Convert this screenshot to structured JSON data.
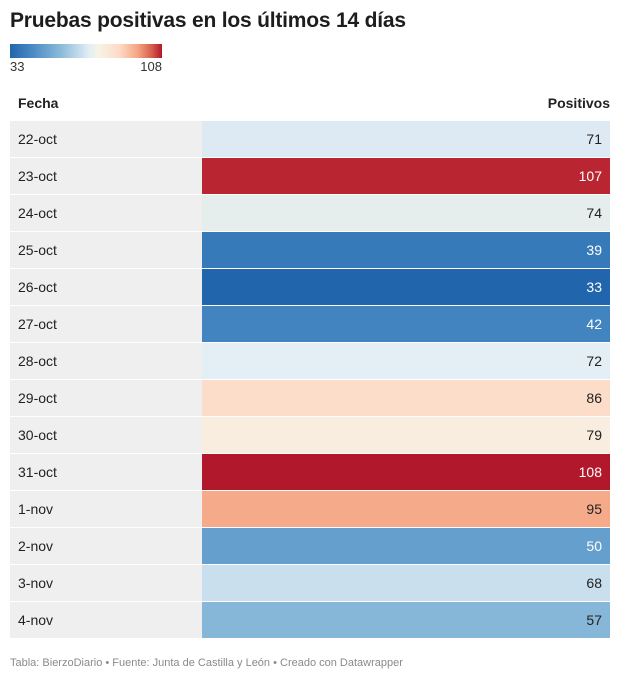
{
  "title": "Pruebas positivas en los últimos 14 días",
  "legend": {
    "min": "33",
    "max": "108"
  },
  "chart_data": {
    "type": "table",
    "columns": [
      "Fecha",
      "Positivos"
    ],
    "rows": [
      {
        "date": "22-oct",
        "value": 71
      },
      {
        "date": "23-oct",
        "value": 107
      },
      {
        "date": "24-oct",
        "value": 74
      },
      {
        "date": "25-oct",
        "value": 39
      },
      {
        "date": "26-oct",
        "value": 33
      },
      {
        "date": "27-oct",
        "value": 42
      },
      {
        "date": "28-oct",
        "value": 72
      },
      {
        "date": "29-oct",
        "value": 86
      },
      {
        "date": "30-oct",
        "value": 79
      },
      {
        "date": "31-oct",
        "value": 108
      },
      {
        "date": "1-nov",
        "value": 95
      },
      {
        "date": "2-nov",
        "value": 50
      },
      {
        "date": "3-nov",
        "value": 68
      },
      {
        "date": "4-nov",
        "value": 57
      }
    ],
    "color_scale": {
      "min": 33,
      "max": 108,
      "low_color": "#2166ac",
      "mid_color": "#f7f3e6",
      "high_color": "#b2182b"
    }
  },
  "footer": "Tabla: BierzoDiario • Fuente: Junta de Castilla y León • Creado con Datawrapper"
}
